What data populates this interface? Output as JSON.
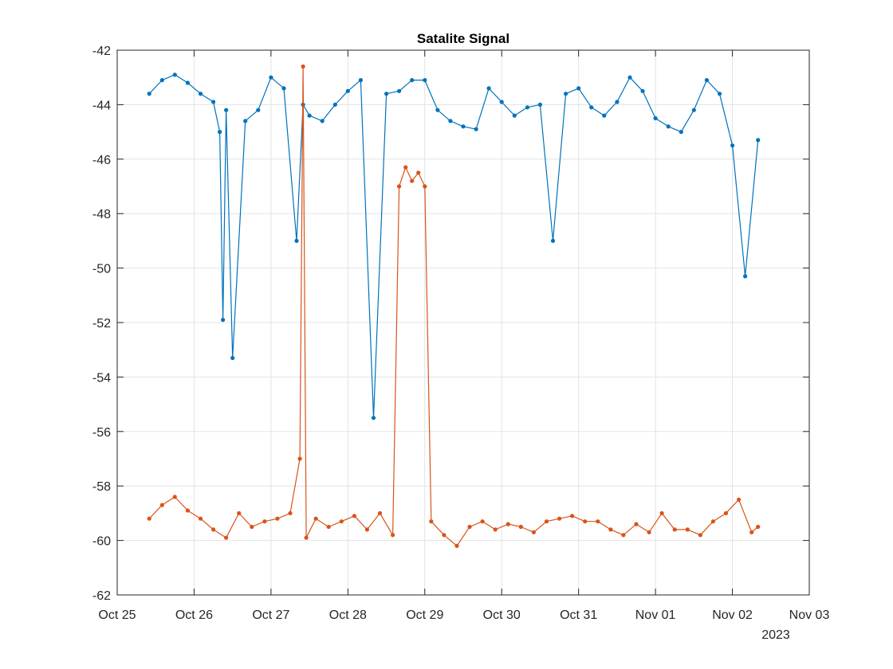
{
  "chart_data": {
    "type": "line",
    "title": "Satalite Signal",
    "xlabel": "",
    "ylabel": "",
    "x_secondary_label": "2023",
    "xlim": [
      "2023-10-25",
      "2023-11-03"
    ],
    "ylim": [
      -62,
      -42
    ],
    "x_ticks": [
      {
        "date": "2023-10-25",
        "label": "Oct 25"
      },
      {
        "date": "2023-10-26",
        "label": "Oct 26"
      },
      {
        "date": "2023-10-27",
        "label": "Oct 27"
      },
      {
        "date": "2023-10-28",
        "label": "Oct 28"
      },
      {
        "date": "2023-10-29",
        "label": "Oct 29"
      },
      {
        "date": "2023-10-30",
        "label": "Oct 30"
      },
      {
        "date": "2023-10-31",
        "label": "Oct 31"
      },
      {
        "date": "2023-11-01",
        "label": "Nov 01"
      },
      {
        "date": "2023-11-02",
        "label": "Nov 02"
      },
      {
        "date": "2023-11-03",
        "label": "Nov 03"
      }
    ],
    "y_ticks": [
      "-62",
      "-60",
      "-58",
      "-56",
      "-54",
      "-52",
      "-50",
      "-48",
      "-46",
      "-44",
      "-42"
    ],
    "grid": true,
    "legend": "none",
    "series": [
      {
        "color": "#0072BD",
        "marker": "dot",
        "x": [
          "2023-10-25 10:00",
          "2023-10-25 14:00",
          "2023-10-25 18:00",
          "2023-10-25 22:00",
          "2023-10-26 02:00",
          "2023-10-26 06:00",
          "2023-10-26 08:00",
          "2023-10-26 09:00",
          "2023-10-26 10:00",
          "2023-10-26 12:00",
          "2023-10-26 16:00",
          "2023-10-26 20:00",
          "2023-10-27 00:00",
          "2023-10-27 04:00",
          "2023-10-27 08:00",
          "2023-10-27 10:00",
          "2023-10-27 12:00",
          "2023-10-27 16:00",
          "2023-10-27 20:00",
          "2023-10-28 00:00",
          "2023-10-28 04:00",
          "2023-10-28 08:00",
          "2023-10-28 12:00",
          "2023-10-28 16:00",
          "2023-10-28 20:00",
          "2023-10-29 00:00",
          "2023-10-29 04:00",
          "2023-10-29 08:00",
          "2023-10-29 12:00",
          "2023-10-29 16:00",
          "2023-10-29 20:00",
          "2023-10-30 00:00",
          "2023-10-30 04:00",
          "2023-10-30 08:00",
          "2023-10-30 12:00",
          "2023-10-30 16:00",
          "2023-10-30 20:00",
          "2023-10-31 00:00",
          "2023-10-31 04:00",
          "2023-10-31 08:00",
          "2023-10-31 12:00",
          "2023-10-31 16:00",
          "2023-10-31 20:00",
          "2023-11-01 00:00",
          "2023-11-01 04:00",
          "2023-11-01 08:00",
          "2023-11-01 12:00",
          "2023-11-01 16:00",
          "2023-11-01 20:00",
          "2023-11-02 00:00",
          "2023-11-02 04:00",
          "2023-11-02 08:00"
        ],
        "y": [
          -43.6,
          -43.1,
          -42.9,
          -43.2,
          -43.6,
          -43.9,
          -45.0,
          -51.9,
          -44.2,
          -53.3,
          -44.6,
          -44.2,
          -43.0,
          -43.4,
          -49.0,
          -44.0,
          -44.4,
          -44.6,
          -44.0,
          -43.5,
          -43.1,
          -55.5,
          -43.6,
          -43.5,
          -43.1,
          -43.1,
          -44.2,
          -44.6,
          -44.8,
          -44.9,
          -43.4,
          -43.9,
          -44.4,
          -44.1,
          -44.0,
          -49.0,
          -43.6,
          -43.4,
          -44.1,
          -44.4,
          -43.9,
          -43.0,
          -43.5,
          -44.5,
          -44.8,
          -45.0,
          -44.2,
          -43.1,
          -43.6,
          -45.5,
          -50.3,
          -45.3
        ]
      },
      {
        "color": "#D95319",
        "marker": "dot",
        "x": [
          "2023-10-25 10:00",
          "2023-10-25 14:00",
          "2023-10-25 18:00",
          "2023-10-25 22:00",
          "2023-10-26 02:00",
          "2023-10-26 06:00",
          "2023-10-26 10:00",
          "2023-10-26 14:00",
          "2023-10-26 18:00",
          "2023-10-26 22:00",
          "2023-10-27 02:00",
          "2023-10-27 06:00",
          "2023-10-27 09:00",
          "2023-10-27 10:00",
          "2023-10-27 11:00",
          "2023-10-27 14:00",
          "2023-10-27 18:00",
          "2023-10-27 22:00",
          "2023-10-28 02:00",
          "2023-10-28 06:00",
          "2023-10-28 10:00",
          "2023-10-28 14:00",
          "2023-10-28 16:00",
          "2023-10-28 18:00",
          "2023-10-28 20:00",
          "2023-10-28 22:00",
          "2023-10-29 00:00",
          "2023-10-29 02:00",
          "2023-10-29 06:00",
          "2023-10-29 10:00",
          "2023-10-29 14:00",
          "2023-10-29 18:00",
          "2023-10-29 22:00",
          "2023-10-30 02:00",
          "2023-10-30 06:00",
          "2023-10-30 10:00",
          "2023-10-30 14:00",
          "2023-10-30 18:00",
          "2023-10-30 22:00",
          "2023-10-31 02:00",
          "2023-10-31 06:00",
          "2023-10-31 10:00",
          "2023-10-31 14:00",
          "2023-10-31 18:00",
          "2023-10-31 22:00",
          "2023-11-01 02:00",
          "2023-11-01 06:00",
          "2023-11-01 10:00",
          "2023-11-01 14:00",
          "2023-11-01 18:00",
          "2023-11-01 22:00",
          "2023-11-02 02:00",
          "2023-11-02 06:00",
          "2023-11-02 08:00"
        ],
        "y": [
          -59.2,
          -58.7,
          -58.4,
          -58.9,
          -59.2,
          -59.6,
          -59.9,
          -59.0,
          -59.5,
          -59.3,
          -59.2,
          -59.0,
          -57.0,
          -42.6,
          -59.9,
          -59.2,
          -59.5,
          -59.3,
          -59.1,
          -59.6,
          -59.0,
          -59.8,
          -47.0,
          -46.3,
          -46.8,
          -46.5,
          -47.0,
          -59.3,
          -59.8,
          -60.2,
          -59.5,
          -59.3,
          -59.6,
          -59.4,
          -59.5,
          -59.7,
          -59.3,
          -59.2,
          -59.1,
          -59.3,
          -59.3,
          -59.6,
          -59.8,
          -59.4,
          -59.7,
          -59.0,
          -59.6,
          -59.6,
          -59.8,
          -59.3,
          -59.0,
          -58.5,
          -59.7,
          -59.5
        ]
      }
    ]
  }
}
